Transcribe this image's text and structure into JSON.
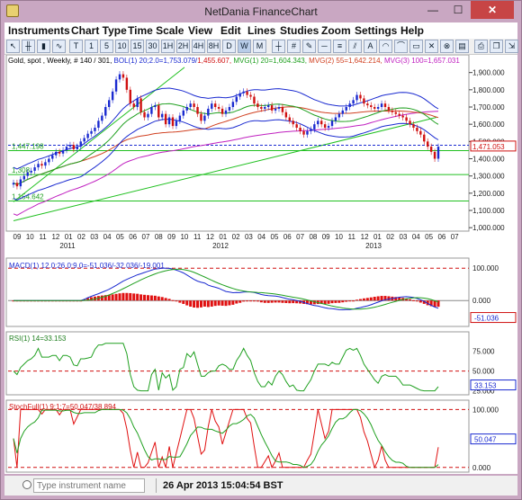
{
  "window": {
    "title": "NetDania FinanceChart",
    "minimize": "—",
    "maximize": "☐",
    "close": "✕"
  },
  "menu": [
    "Instruments",
    "Chart Type",
    "Time Scale",
    "View",
    "Edit",
    "Lines",
    "Studies",
    "Zoom",
    "Settings",
    "Help"
  ],
  "toolbar": {
    "timescale_buttons": [
      "T",
      "1",
      "5",
      "10",
      "15",
      "30",
      "1H",
      "2H",
      "4H",
      "8H",
      "D",
      "W",
      "M"
    ],
    "selected_timescale": "W",
    "icons": [
      "arrow-icon",
      "bar-chart-icon",
      "candle-chart-icon",
      "line-chart-icon",
      "crosshair-icon",
      "grid-icon",
      "pen-icon",
      "delete-icon",
      "remove-all-icon",
      "print-icon",
      "copy-icon"
    ]
  },
  "price_panel": {
    "header": "Gold, spot , Weekly, # 140 / 301, BOL(1) 20;2.0=1,753.079/1,455.607, MVG(1) 20=1,604.343, MVG(2) 55=1,642.214, MVG(3) 100=1,657.031",
    "header_parts": [
      {
        "text": "Gold, spot , Weekly, # 140 / 301, ",
        "color": "#000000"
      },
      {
        "text": "BOL(1) 20;2.0=1,753.079/",
        "color": "#1a2ad0"
      },
      {
        "text": "1,455.607, ",
        "color": "#d01010"
      },
      {
        "text": "MVG(1) 20=1,604.343, ",
        "color": "#20a020"
      },
      {
        "text": "MVG(2) 55=1,642.214, ",
        "color": "#d04020"
      },
      {
        "text": "MVG(3) 100=1,657.031",
        "color": "#c020c0"
      }
    ],
    "y_ticks": [
      "1,900.000",
      "1,800.000",
      "1,700.000",
      "1,600.000",
      "1,500.000",
      "1,400.000",
      "1,300.000",
      "1,200.000",
      "1,100.000",
      "1,000.000"
    ],
    "last_price": "1,471.053",
    "left_labels": [
      "1,447.198",
      "1,308",
      "1,154.642"
    ]
  },
  "x_axis": {
    "months": [
      "09",
      "10",
      "11",
      "12",
      "01",
      "02",
      "03",
      "04",
      "05",
      "06",
      "07",
      "08",
      "09",
      "10",
      "11",
      "12",
      "01",
      "02",
      "03",
      "04",
      "05",
      "06",
      "07",
      "08",
      "09",
      "10",
      "11",
      "12",
      "01",
      "02",
      "03",
      "04",
      "05",
      "06",
      "07"
    ],
    "years": [
      "2011",
      "2012",
      "2013"
    ]
  },
  "macd_panel": {
    "header": "MACD(1) 12.0;26.0;9.0=-51.036/-32.036/-19.001",
    "y_ticks": [
      "100.000",
      "0.000"
    ],
    "last_value": "-51.036"
  },
  "rsi_panel": {
    "header": "RSI(1) 14=33.153",
    "y_ticks": [
      "75.000",
      "50.000",
      "25.000"
    ],
    "last_value": "33.153"
  },
  "stoch_panel": {
    "header": "StochFull(1) 9;1;7=50.047/38.894",
    "y_ticks": [
      "100.000",
      "50.000",
      "0.000"
    ],
    "last_value": "50.047"
  },
  "status": {
    "search_placeholder": "Type instrument name",
    "datetime": "26 Apr 2013 15:04:54 BST"
  },
  "colors": {
    "candle_up": "#1a2ad0",
    "candle_down": "#d01010",
    "bollinger": "#1a2ad0",
    "mvg20": "#20a020",
    "mvg55": "#d04020",
    "mvg100": "#c020c0",
    "dashed_ref": "#d01010"
  }
}
